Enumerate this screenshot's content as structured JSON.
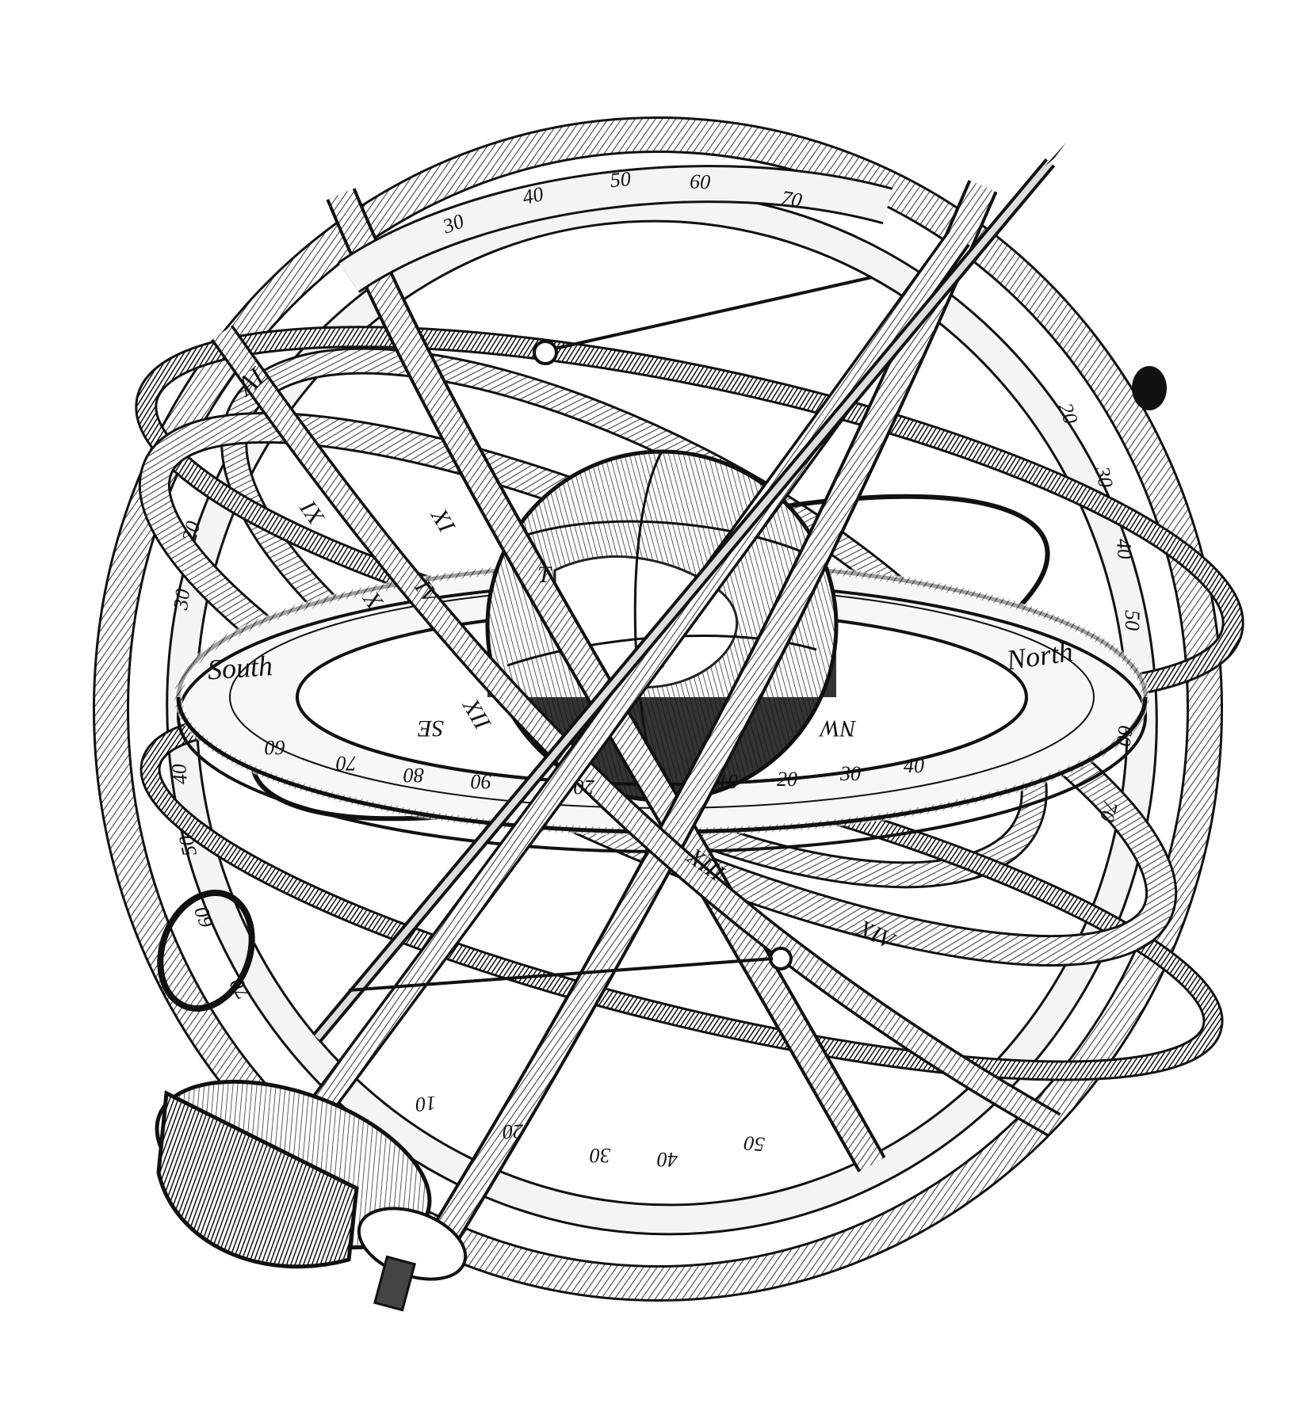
{
  "colors": {
    "ink": "#111111",
    "band": "#f2f2f2",
    "hatch": "#555555",
    "paper": "#ffffff",
    "dark": "#1a1a1a"
  },
  "labels": {
    "north": "North",
    "south": "South",
    "nw": "NW",
    "se": "SE",
    "t": "T",
    "tropic_mark": "AL"
  },
  "top_scale": [
    "30",
    "40",
    "50",
    "60",
    "70"
  ],
  "front_scale": [
    "10",
    "20",
    "30",
    "40"
  ],
  "back_scale": [
    "60",
    "70",
    "80",
    "90",
    "20"
  ],
  "bottom_scale": [
    "10",
    "20",
    "30",
    "40",
    "50"
  ],
  "right_scale": [
    "20",
    "30",
    "40",
    "50",
    "60",
    "70"
  ],
  "left_scale": [
    "20",
    "30",
    "40",
    "50",
    "60",
    "70"
  ],
  "roman_numerals": [
    "IX",
    "X",
    "XI",
    "XII",
    "XIII",
    "XIV",
    "IV"
  ]
}
